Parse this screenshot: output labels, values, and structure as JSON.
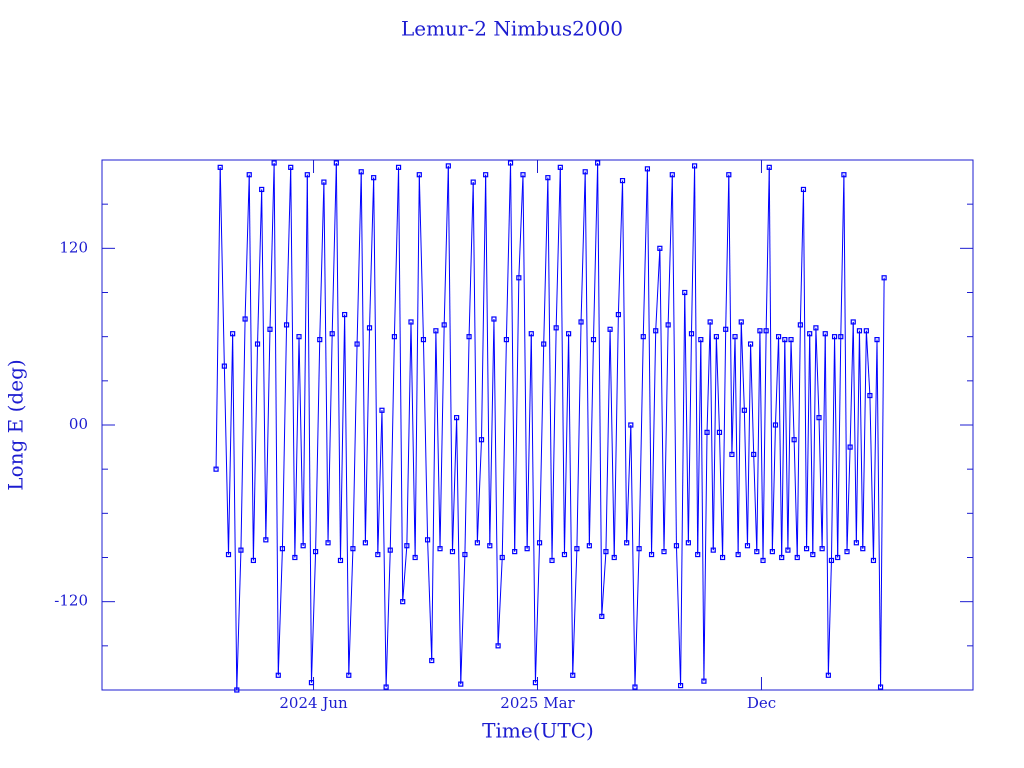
{
  "chart_data": {
    "type": "line",
    "title": "Lemur-2 Nimbus2000",
    "xlabel": "Time(UTC)",
    "ylabel": "Long E (deg)",
    "x": [
      "2024-02",
      "2024-03",
      "2024-04",
      "2024-05",
      "2024-06",
      "2024-07",
      "2024-08",
      "2024-09",
      "2024-10",
      "2024-11",
      "2024-12",
      "2025-01",
      "2025-02",
      "2025-03",
      "2025-04",
      "2025-05",
      "2025-06",
      "2025-07",
      "2025-08",
      "2025-09",
      "2025-10",
      "2025-11",
      "2025-12",
      "2026-01",
      "2026-02",
      "2026-03",
      "2026-04"
    ],
    "series": [
      {
        "color": "#0000ff",
        "values": [
          [
            -30,
            175,
            40,
            -88,
            62,
            -180
          ],
          [
            -85,
            72,
            170,
            -92,
            55,
            160
          ],
          [
            -78,
            65,
            178,
            -170,
            -84,
            68
          ],
          [
            175,
            -90,
            60,
            -82,
            170,
            -175
          ],
          [
            -86,
            58,
            165,
            -80,
            62,
            178
          ],
          [
            -92,
            75,
            -170,
            -84,
            55,
            172
          ],
          [
            -80,
            66,
            168,
            -88,
            10,
            -178
          ],
          [
            -85,
            60,
            175,
            -120,
            -82,
            70
          ],
          [
            -90,
            170,
            58,
            -78,
            -160,
            64
          ],
          [
            -84,
            68,
            176,
            -86,
            5,
            -176
          ],
          [
            -88,
            60,
            165,
            -80,
            -10,
            170
          ],
          [
            -82,
            72,
            -150,
            -90,
            58,
            178
          ],
          [
            -86,
            100,
            170,
            -84,
            62,
            -175
          ],
          [
            -80,
            55,
            168,
            -92,
            66,
            175
          ],
          [
            -88,
            62,
            -170,
            -84,
            70,
            172
          ],
          [
            -82,
            58,
            178,
            -130,
            -86,
            65
          ],
          [
            -90,
            75,
            166,
            -80,
            0,
            -178
          ],
          [
            -84,
            60,
            174,
            -88,
            64,
            120
          ],
          [
            -86,
            68,
            170,
            -82,
            -177,
            90
          ],
          [
            -80,
            62,
            176,
            -88,
            58,
            -174,
            -5,
            70
          ],
          [
            -85,
            60,
            -5,
            -90,
            65,
            170,
            -20,
            60
          ],
          [
            -88,
            70,
            10,
            -82,
            55,
            -20,
            -86,
            64
          ],
          [
            -92,
            64,
            175,
            -86,
            0,
            60,
            -90,
            58
          ],
          [
            -85,
            58,
            -10,
            -90,
            68,
            160,
            -84,
            62
          ],
          [
            -88,
            66,
            5,
            -84,
            62,
            -170,
            -92,
            60
          ],
          [
            -90,
            60,
            170,
            -86,
            -15,
            70,
            -80,
            64
          ],
          [
            -84,
            64,
            20,
            -92,
            58,
            -178,
            100
          ]
        ]
      }
    ],
    "xlim": [
      "2023-09",
      "2026-08"
    ],
    "xticks": [
      {
        "value": "2024-06",
        "label": "2024 Jun"
      },
      {
        "value": "2025-03",
        "label": "2025 Mar"
      },
      {
        "value": "2025-12",
        "label": "Dec"
      }
    ],
    "ylim": [
      -180,
      180
    ],
    "yticks": [
      -120,
      {
        "value": 0,
        "label": "00"
      },
      120
    ],
    "yminorticks": [
      -150,
      -90,
      -60,
      -30,
      30,
      60,
      90,
      150
    ]
  }
}
